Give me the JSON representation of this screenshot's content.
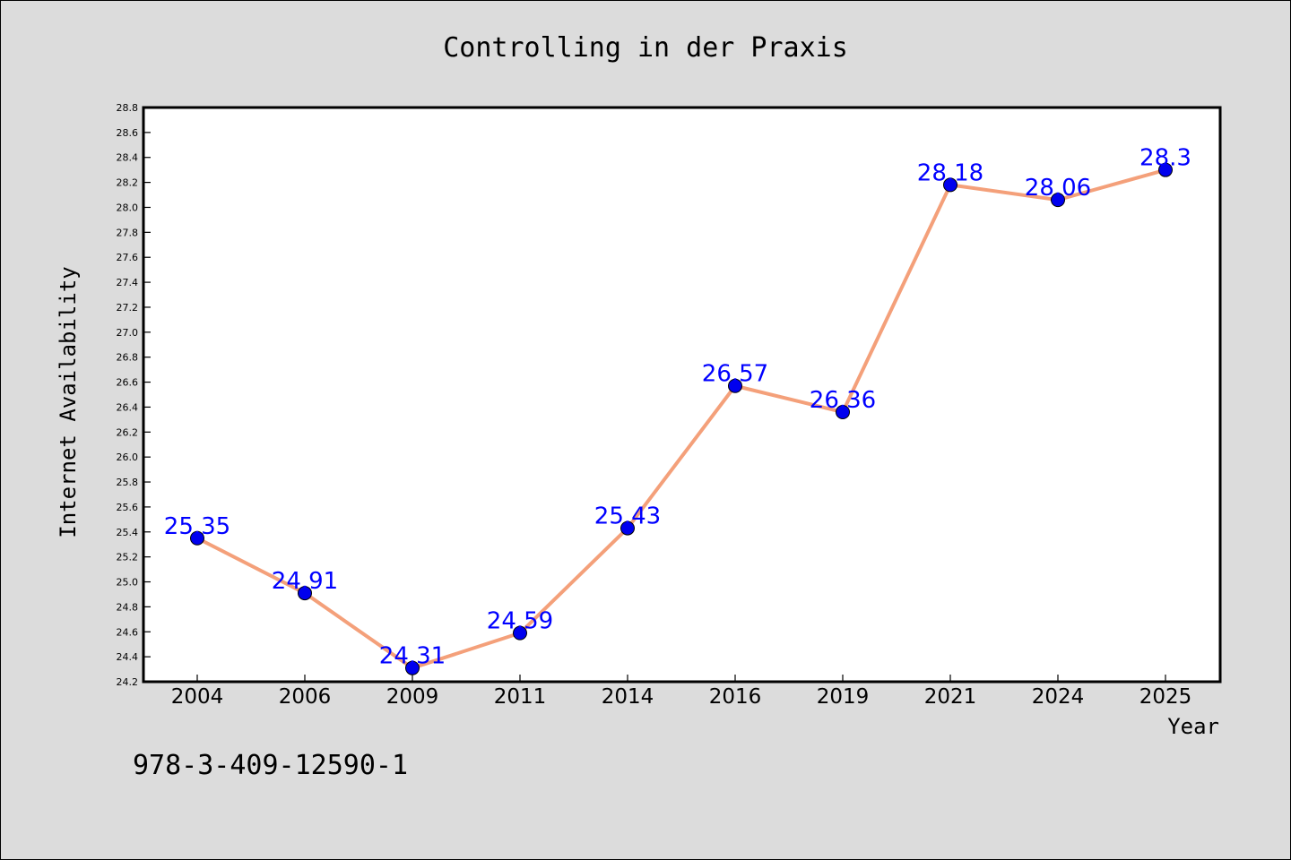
{
  "chart_data": {
    "type": "line",
    "title": "Controlling in der Praxis",
    "xlabel": "Year",
    "ylabel": "Internet Availability",
    "categories": [
      "2004",
      "2006",
      "2009",
      "2011",
      "2014",
      "2016",
      "2019",
      "2021",
      "2024",
      "2025"
    ],
    "values": [
      25.35,
      24.91,
      24.31,
      24.59,
      25.43,
      26.57,
      26.36,
      28.18,
      28.06,
      28.3
    ],
    "data_labels": [
      "25.35",
      "24.91",
      "24.31",
      "24.59",
      "25.43",
      "26.57",
      "26.36",
      "28.18",
      "28.06",
      "28.3"
    ],
    "ylim": [
      24.2,
      28.8
    ],
    "yticks": [
      "24.2",
      "24.4",
      "24.6",
      "24.8",
      "25.0",
      "25.2",
      "25.4",
      "25.6",
      "25.8",
      "26.0",
      "26.2",
      "26.4",
      "26.6",
      "26.8",
      "27.0",
      "27.2",
      "27.4",
      "27.6",
      "27.8",
      "28.0",
      "28.2",
      "28.4",
      "28.6",
      "28.8"
    ],
    "grid": false,
    "line_color": "#f4a07a",
    "marker_color": "#0000ee",
    "label_color": "#0000ff"
  },
  "footer": {
    "isbn": "978-3-409-12590-1"
  }
}
